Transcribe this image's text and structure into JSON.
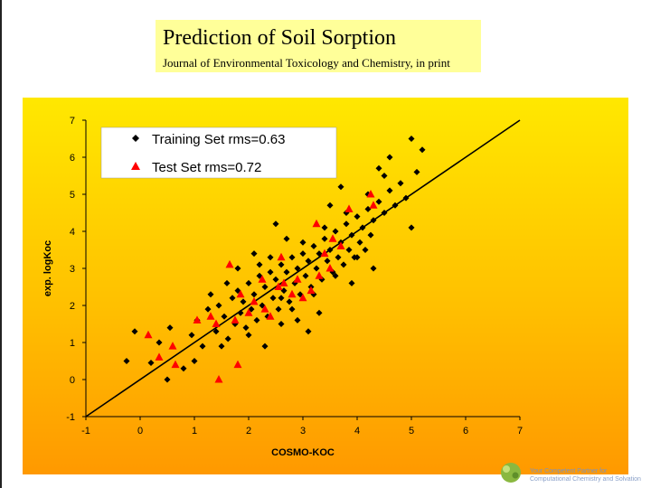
{
  "slide": {
    "title": "Prediction of Soil Sorption",
    "subtitle": "Journal of Environmental Toxicology and Chemistry, in print",
    "footer_line1": "Your Competent Partner for",
    "footer_line2": "Computational Chemistry and Solvation"
  },
  "colors": {
    "title_background": "#ffff99",
    "panel_gradient": [
      "#ffe800",
      "#ffc000",
      "#ff9900"
    ],
    "training_marker": "#000000",
    "test_marker": "#ff0000",
    "regression_line": "#000000"
  },
  "chart_data": {
    "type": "scatter",
    "title": "",
    "xlabel": "COSMO-KOC",
    "ylabel": "exp. logKoc",
    "xlim": [
      -1,
      7
    ],
    "ylim": [
      -1,
      7
    ],
    "xticks": [
      "-1",
      "0",
      "1",
      "2",
      "3",
      "4",
      "5",
      "6",
      "7"
    ],
    "yticks": [
      "-1",
      "0",
      "1",
      "2",
      "3",
      "4",
      "5",
      "6",
      "7"
    ],
    "grid": false,
    "legend_position": "top-left",
    "reference_line": {
      "from": [
        -1,
        -1
      ],
      "to": [
        7,
        7
      ]
    },
    "series": [
      {
        "name": "Training Set rms=0.63",
        "marker": "diamond",
        "x": [
          -0.25,
          -0.1,
          0.2,
          0.35,
          0.55,
          0.95,
          1.05,
          1.15,
          1.25,
          1.4,
          1.45,
          1.55,
          1.62,
          1.7,
          1.75,
          1.8,
          1.85,
          1.9,
          1.95,
          2.0,
          2.05,
          2.1,
          2.15,
          2.2,
          2.25,
          2.3,
          2.35,
          2.4,
          2.45,
          2.5,
          2.55,
          2.6,
          2.65,
          2.7,
          2.75,
          2.8,
          2.85,
          2.9,
          2.95,
          3.0,
          3.05,
          3.1,
          3.15,
          3.2,
          3.25,
          3.3,
          3.35,
          3.4,
          3.45,
          3.5,
          3.55,
          3.6,
          3.65,
          3.7,
          3.75,
          3.8,
          3.85,
          3.9,
          3.95,
          4.0,
          4.05,
          4.1,
          4.15,
          4.2,
          4.25,
          4.3,
          4.4,
          4.5,
          4.6,
          4.7,
          4.8,
          4.9,
          5.0,
          5.1,
          5.2,
          1.3,
          1.6,
          2.0,
          2.2,
          2.4,
          2.6,
          2.8,
          3.0,
          3.2,
          3.4,
          3.6,
          3.8,
          4.0,
          4.2,
          4.4,
          4.6,
          1.0,
          1.5,
          2.1,
          2.7,
          3.3,
          3.9,
          4.5,
          5.0,
          0.5,
          0.8,
          2.5,
          2.9,
          3.5,
          4.3,
          2.3,
          1.8,
          2.6,
          3.1,
          3.7
        ],
        "y": [
          0.5,
          1.3,
          0.45,
          1.0,
          1.4,
          1.2,
          1.6,
          0.9,
          1.9,
          1.3,
          2.0,
          1.7,
          1.1,
          2.2,
          1.5,
          2.4,
          1.8,
          2.1,
          1.4,
          2.6,
          1.9,
          2.3,
          1.6,
          2.8,
          2.0,
          2.5,
          1.7,
          2.9,
          2.2,
          2.7,
          1.9,
          3.1,
          2.4,
          2.9,
          2.1,
          3.3,
          2.6,
          3.0,
          2.3,
          3.4,
          2.8,
          3.2,
          2.5,
          3.6,
          3.0,
          3.4,
          2.7,
          3.8,
          3.2,
          3.5,
          2.9,
          4.0,
          3.3,
          3.7,
          3.1,
          4.2,
          3.5,
          3.9,
          3.3,
          4.4,
          3.7,
          4.1,
          3.5,
          4.6,
          3.9,
          4.3,
          4.8,
          4.5,
          5.1,
          4.7,
          5.3,
          4.9,
          6.5,
          5.6,
          6.2,
          2.3,
          2.6,
          1.2,
          3.1,
          3.3,
          1.5,
          1.9,
          3.7,
          2.3,
          4.1,
          2.8,
          4.5,
          3.3,
          5.0,
          5.7,
          6.0,
          0.5,
          0.9,
          3.4,
          3.8,
          1.8,
          2.6,
          5.5,
          4.1,
          0.0,
          0.3,
          4.2,
          1.6,
          4.7,
          3.0,
          0.9,
          3.0,
          2.2,
          1.3,
          5.2
        ]
      },
      {
        "name": "Test Set rms=0.72",
        "marker": "triangle",
        "x": [
          0.15,
          0.35,
          0.65,
          1.05,
          1.3,
          1.45,
          1.65,
          1.8,
          1.85,
          2.0,
          2.1,
          2.25,
          2.4,
          2.55,
          2.65,
          2.8,
          2.9,
          3.0,
          3.15,
          3.25,
          3.4,
          3.55,
          3.7,
          3.85,
          4.25,
          4.3,
          0.6,
          1.4,
          1.75,
          2.3,
          2.6,
          3.3,
          3.5
        ],
        "y": [
          1.2,
          0.6,
          0.4,
          1.6,
          1.7,
          0.0,
          3.1,
          0.4,
          2.3,
          1.8,
          2.1,
          2.7,
          1.7,
          2.5,
          2.6,
          2.3,
          2.7,
          2.2,
          2.4,
          4.2,
          3.4,
          3.8,
          3.6,
          4.6,
          5.0,
          4.7,
          0.9,
          1.5,
          1.6,
          1.9,
          3.3,
          2.8,
          3.0
        ]
      }
    ]
  }
}
